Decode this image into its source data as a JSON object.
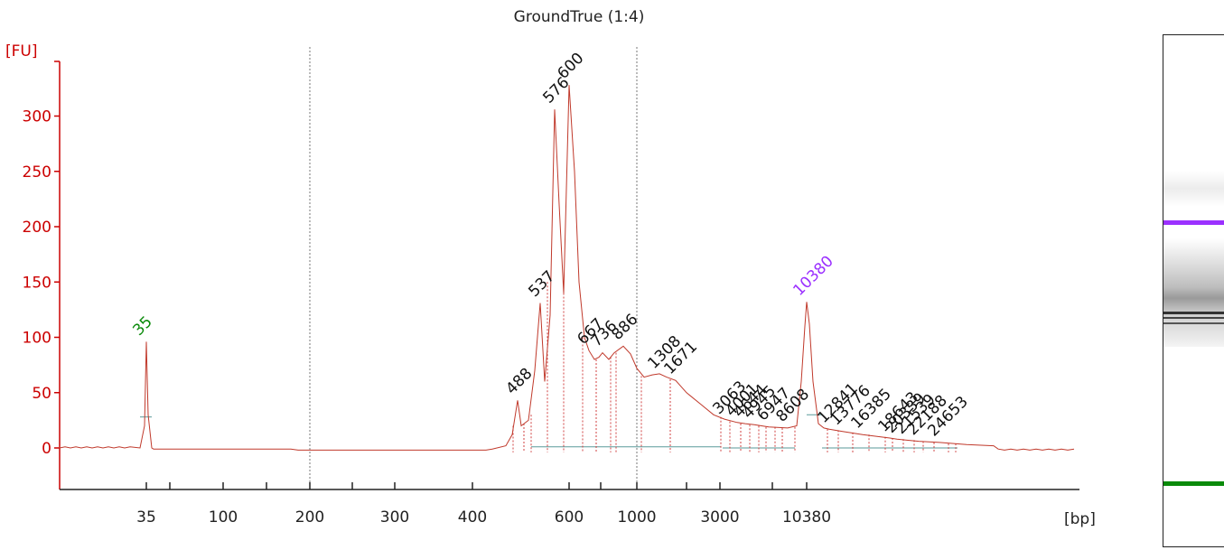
{
  "chart_data": {
    "type": "line",
    "title": "GroundTrue (1:4)",
    "ylabel": "[FU]",
    "xlabel": "[bp]",
    "ylim": [
      -38,
      368
    ],
    "yticks": [
      0,
      50,
      100,
      150,
      200,
      250,
      300
    ],
    "x_scale": "nonlinear ladder (bp)",
    "xticks": [
      "35",
      "100",
      "200",
      "300",
      "400",
      "600",
      "1000",
      "3000",
      "10380"
    ],
    "grid": "dotted vertical lines at 200 and 1000 bp",
    "line_color": "#c0392b",
    "markers": [
      {
        "label": "35",
        "bp": 35,
        "height": 96,
        "color": "#0a8a0a"
      },
      {
        "label": "10380",
        "bp": 10380,
        "height": 132,
        "color": "#9b30ff"
      }
    ],
    "peaks": [
      {
        "label": "488",
        "height": 43
      },
      {
        "label": "537",
        "height": 131
      },
      {
        "label": "576",
        "height": 306
      },
      {
        "label": "600",
        "height": 328
      },
      {
        "label": "667",
        "height": 88
      },
      {
        "label": "736",
        "height": 86
      },
      {
        "label": "886",
        "height": 92
      },
      {
        "label": "1308",
        "height": 66
      },
      {
        "label": "1671",
        "height": 61
      },
      {
        "label": "3063",
        "height": 25
      },
      {
        "label": "4001",
        "height": 23
      },
      {
        "label": "4644",
        "height": 22
      },
      {
        "label": "4945",
        "height": 21
      },
      {
        "label": "6947",
        "height": 19
      },
      {
        "label": "8608",
        "height": 18
      },
      {
        "label": "12841",
        "height": 17
      },
      {
        "label": "13776",
        "height": 15
      },
      {
        "label": "16385",
        "height": 12
      },
      {
        "label": "18643",
        "height": 9
      },
      {
        "label": "20339",
        "height": 8
      },
      {
        "label": "21539",
        "height": 7
      },
      {
        "label": "22188",
        "height": 6
      },
      {
        "label": "24653",
        "height": 5
      }
    ]
  },
  "gel": {
    "ladder_upper_color": "#9b30ff",
    "ladder_lower_color": "#0a8a0a"
  }
}
